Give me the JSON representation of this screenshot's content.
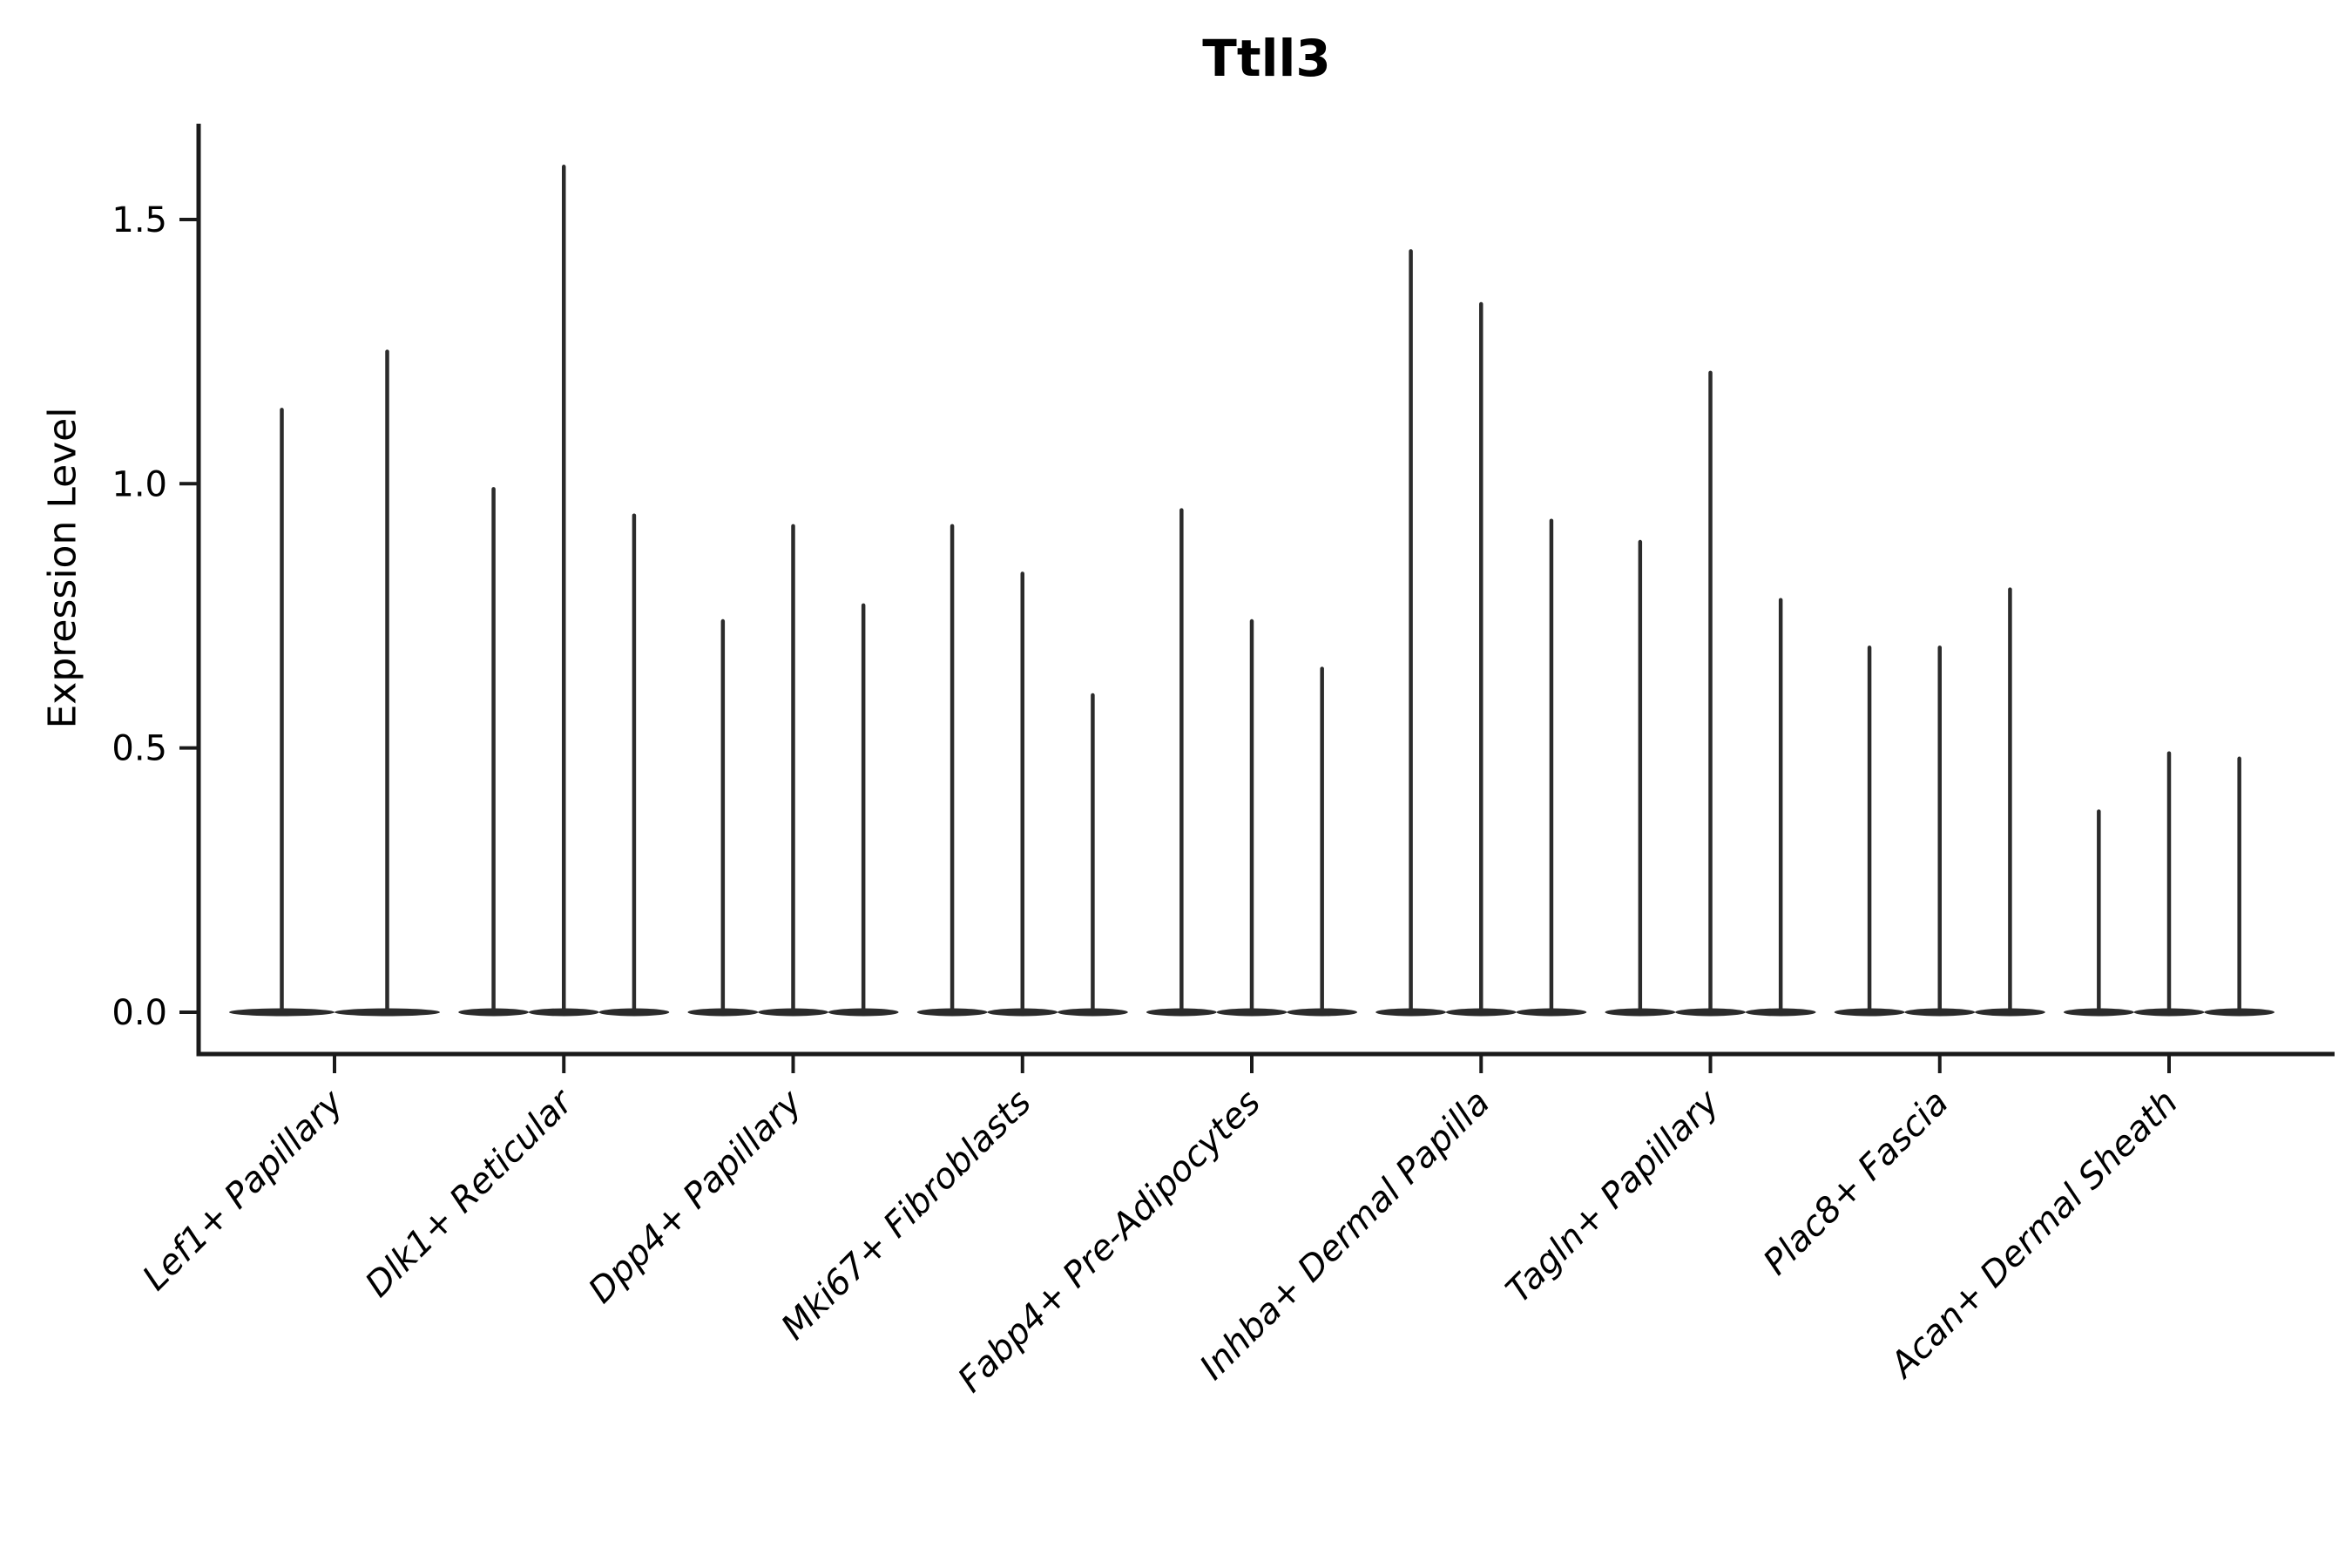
{
  "figure": {
    "background": "#ffffff"
  },
  "chart_data": {
    "type": "violin",
    "title": "Ttll3",
    "ylabel": "Expression Level",
    "xlabel": "",
    "yticks": [
      0.0,
      0.5,
      1.0,
      1.5
    ],
    "ytick_labels": [
      "0.0",
      "0.5",
      "1.0",
      "1.5"
    ],
    "ylim": [
      -0.08,
      1.68
    ],
    "grid": false,
    "legend_position": "none",
    "categories": [
      "Lef1+ Papillary",
      "Dlk1+ Reticular",
      "Dpp4+ Papillary",
      "Mki67+ Fibroblasts",
      "Fabp4+ Pre-Adipocytes",
      "Inhba+ Dermal Papilla",
      "Tagln+ Papillary",
      "Plac8+ Fascia",
      "Acan+ Dermal Sheath"
    ],
    "violins_per_category": [
      2,
      3,
      3,
      3,
      3,
      3,
      3,
      3,
      3
    ],
    "values": [
      [
        1.14,
        1.25
      ],
      [
        0.99,
        1.6,
        0.94
      ],
      [
        0.74,
        0.92,
        0.77
      ],
      [
        0.92,
        0.83,
        0.6
      ],
      [
        0.95,
        0.74,
        0.65
      ],
      [
        1.44,
        1.34,
        0.93
      ],
      [
        0.89,
        1.21,
        0.78
      ],
      [
        0.69,
        0.69,
        0.8
      ],
      [
        0.38,
        0.49,
        0.48
      ]
    ],
    "description": "Sparse single-cell expression violins: density mass concentrated at 0 (flat body on baseline) with one thin vertical tail per violin reaching the listed maximum expression value",
    "violin_color": "#2b2b2b",
    "axis_color": "#1a1a1a",
    "text_color": "#000000"
  }
}
